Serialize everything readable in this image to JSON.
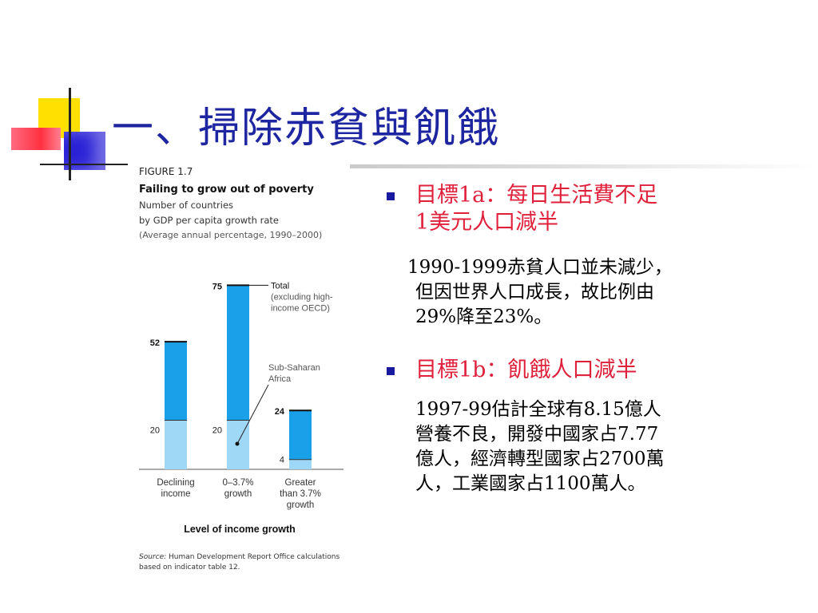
{
  "slide": {
    "title": "一、掃除赤貧與飢餓"
  },
  "figure": {
    "figure_number": "FIGURE 1.7",
    "source_italic": "Source:",
    "source_text": " Human Development Report Office calculations based on indicator table 12."
  },
  "chart_data": {
    "type": "bar",
    "title": "Failing to grow out of poverty",
    "subtitle_lines": [
      "Number of countries",
      "by GDP per capita growth rate",
      "(Average annual percentage, 1990–2000)"
    ],
    "xlabel": "Level of income growth",
    "categories": [
      [
        "Declining",
        "income"
      ],
      [
        "0–3.7%",
        "growth"
      ],
      [
        "Greater",
        "than 3.7%",
        "growth"
      ]
    ],
    "series": [
      {
        "name": "Total (excluding high-income OECD)",
        "values": [
          52,
          75,
          24
        ],
        "color": "#1aa0e8"
      },
      {
        "name": "Sub-Saharan Africa",
        "values": [
          20,
          20,
          4
        ],
        "color": "#9fd8f6"
      }
    ],
    "legend_total": [
      "Total",
      "(excluding high-",
      "income OECD)"
    ],
    "legend_ssa": [
      "Sub-Saharan",
      "Africa"
    ],
    "ylim": [
      0,
      80
    ],
    "grid": false
  },
  "bullets": [
    {
      "heading_lines": [
        "目標1a：每日生活費不足",
        "1美元人口減半"
      ],
      "body_lines": [
        "1990-1999赤貧人口並未減少，",
        "但因世界人口成長，故比例由",
        "29%降至23%。"
      ]
    },
    {
      "heading_lines": [
        "目標1b：飢餓人口減半"
      ],
      "body_lines": [
        "1997-99估計全球有8.15億人",
        "營養不良，開發中國家占7.77",
        "億人，經濟轉型國家占2700萬",
        "人，工業國家占1100萬人。"
      ]
    }
  ],
  "colors": {
    "title": "#1e25a0",
    "bullet_heading": "#e0213c",
    "bullet_marker": "#1a1aa0",
    "bar_total": "#1aa0e8",
    "bar_ssa": "#9fd8f6"
  }
}
